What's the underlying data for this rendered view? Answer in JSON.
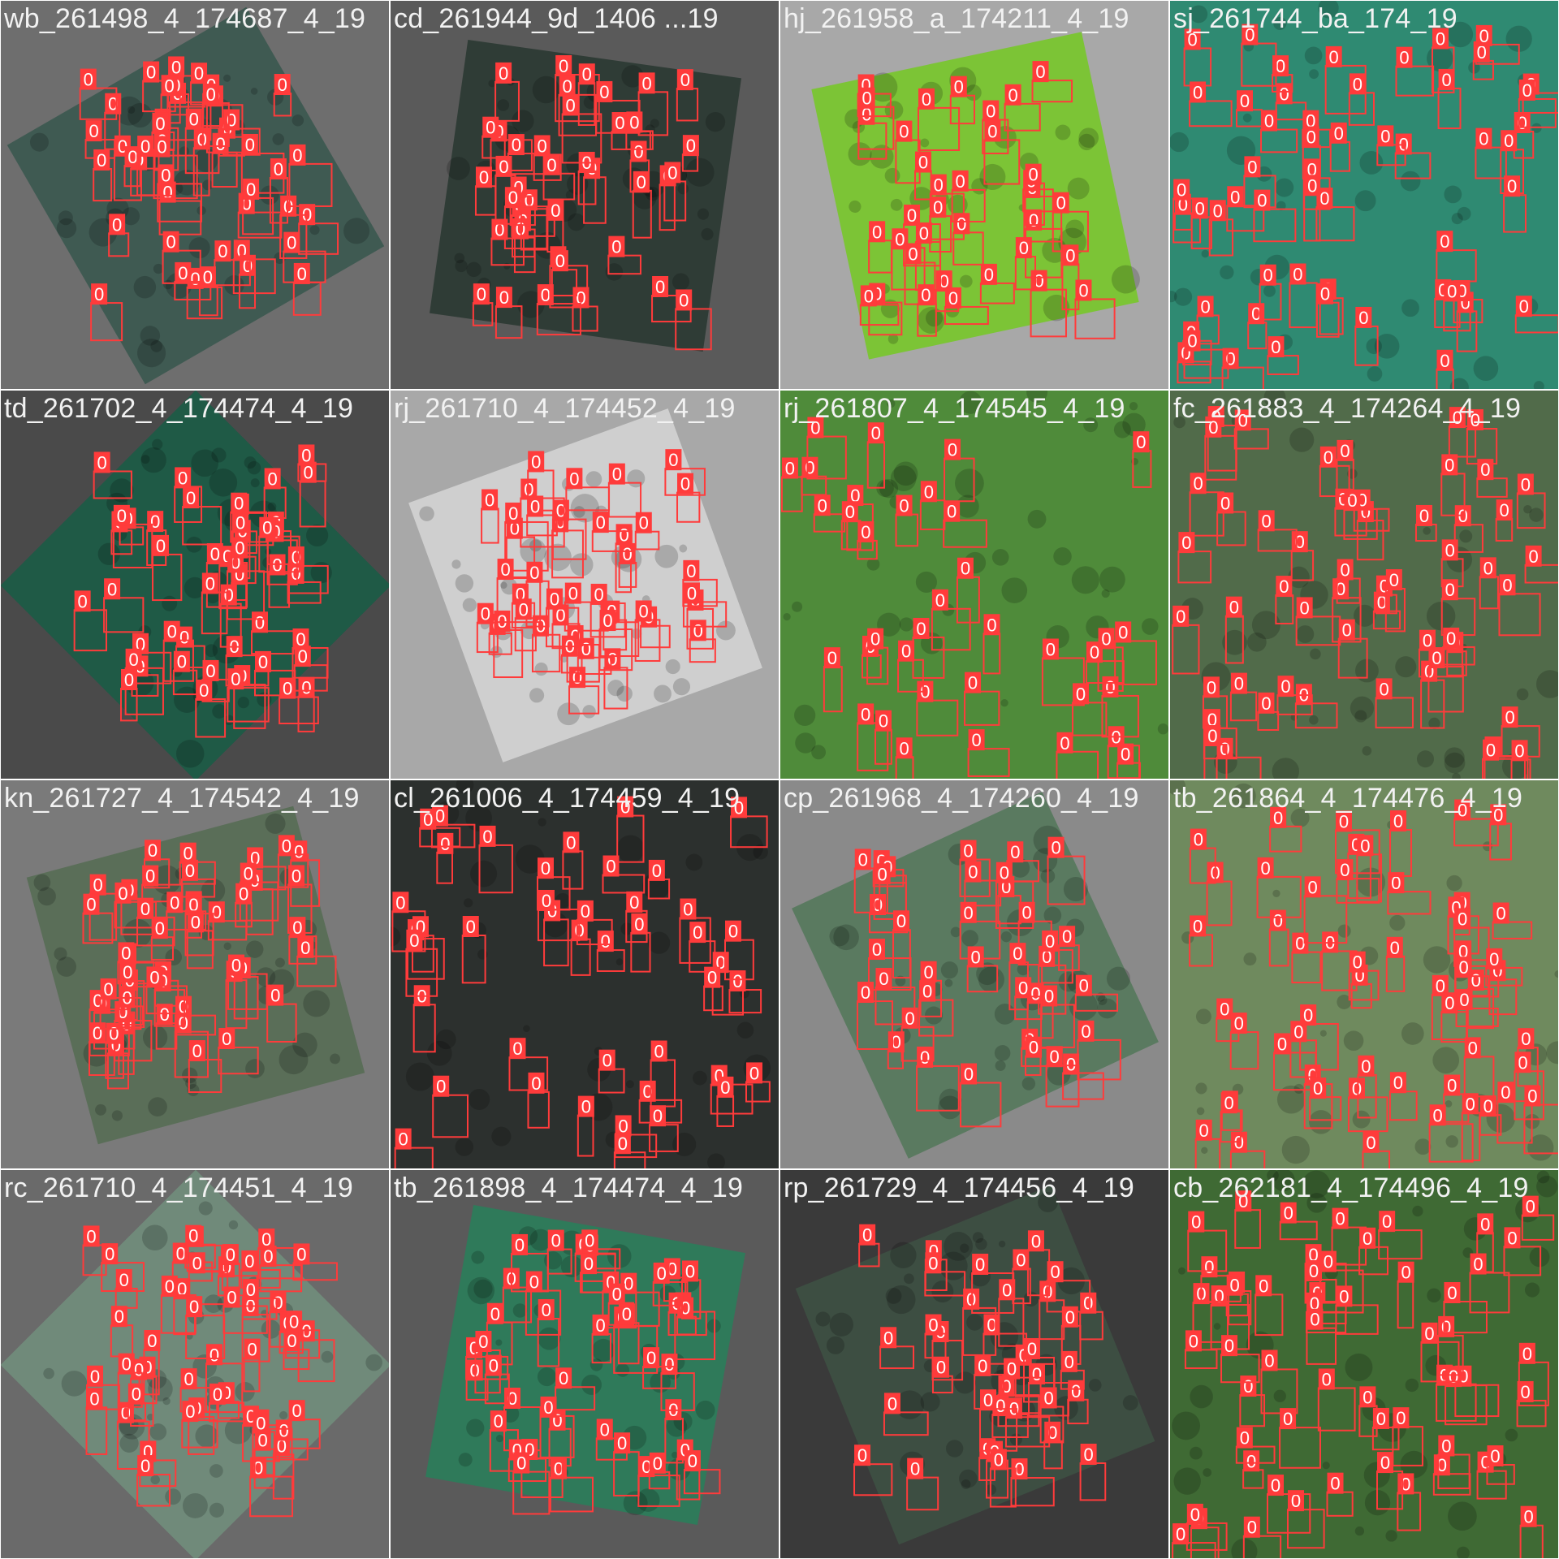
{
  "label": "0",
  "box_color": "#ff3b3b",
  "tiles": [
    {
      "title": "wb_261498_4_174687_4_19",
      "bg": "#6e6e6e",
      "image": "#3f5a52",
      "rot": -30
    },
    {
      "title": "cd_261944_9d_1406 ...19",
      "bg": "#5a5a5a",
      "image": "#2f3c36",
      "rot": 8
    },
    {
      "title": "hj_261958_a_174211_4_19",
      "bg": "#a8a8a8",
      "image": "#7cc436",
      "rot": -12
    },
    {
      "title": "sj_261744_ba_174_19",
      "bg": "#3c8d78",
      "image": "#2f8a72",
      "rot": 0
    },
    {
      "title": "td_261702_4_174474_4_19",
      "bg": "#4a4a4a",
      "image": "#1f5a46",
      "rot": 45
    },
    {
      "title": "rj_261710_4_174452_4_19",
      "bg": "#a8a8a8",
      "image": "#cfcfcf",
      "rot": -20
    },
    {
      "title": "rj_261807_4_174545_4_19",
      "bg": "#3a6f32",
      "image": "#4f8b3a",
      "rot": 0
    },
    {
      "title": "fc_261883_4_174264_4_19",
      "bg": "#4a5a4a",
      "image": "#516b4a",
      "rot": 0
    },
    {
      "title": "kn_261727_4_174542_4_19",
      "bg": "#7a7a7a",
      "image": "#5a6e58",
      "rot": -15
    },
    {
      "title": "cl_261006_4_174459_4_19",
      "bg": "#3e3e3e",
      "image": "#2c302e",
      "rot": 0
    },
    {
      "title": "cp_261968_4_174260_4_19",
      "bg": "#8a8a8a",
      "image": "#5a7a60",
      "rot": -25
    },
    {
      "title": "tb_261864_4_174476_4_19",
      "bg": "#5a6a5a",
      "image": "#6f8a5e",
      "rot": 0
    },
    {
      "title": "rc_261710_4_174451_4_19",
      "bg": "#6a6a6a",
      "image": "#708a7a",
      "rot": -45
    },
    {
      "title": "tb_261898_4_174474_4_19",
      "bg": "#5a5a5a",
      "image": "#2f7a5a",
      "rot": 10
    },
    {
      "title": "rp_261729_4_174456_4_19",
      "bg": "#3a3a3a",
      "image": "#3d4e42",
      "rot": -22
    },
    {
      "title": "cb_262181_4_174496_4_19",
      "bg": "#3f5e34",
      "image": "#3f6a34",
      "rot": 0
    }
  ]
}
